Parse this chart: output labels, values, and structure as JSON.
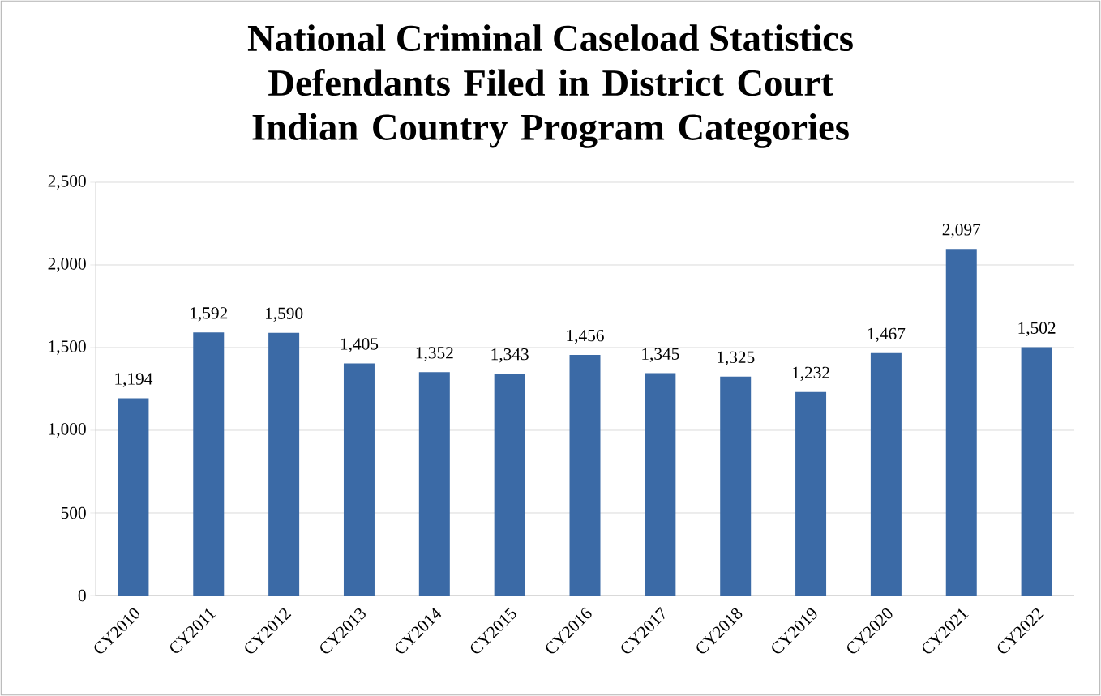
{
  "chart_data": {
    "type": "bar",
    "title": "National Criminal Caseload Statistics",
    "subtitle": "Defendants Filed in District Court Indian Country Program Categories",
    "categories": [
      "CY2010",
      "CY2011",
      "CY2012",
      "CY2013",
      "CY2014",
      "CY2015",
      "CY2016",
      "CY2017",
      "CY2018",
      "CY2019",
      "CY2020",
      "CY2021",
      "CY2022"
    ],
    "values": [
      1194,
      1592,
      1590,
      1405,
      1352,
      1343,
      1456,
      1345,
      1325,
      1232,
      1467,
      2097,
      1502
    ],
    "color": "#3b6aa6",
    "ylim": [
      0,
      2500
    ],
    "yticks": [
      0,
      {
        "value": 500,
        "label": "500"
      },
      {
        "value": 1000,
        "label": "1,000"
      },
      {
        "value": 1500,
        "label": "1,500"
      },
      {
        "value": 2000,
        "label": "2,000"
      },
      {
        "value": 2500,
        "label": "2,500"
      }
    ],
    "grid": "y",
    "value_labels": [
      "1,194",
      "1,592",
      "1,590",
      "1,405",
      "1,352",
      "1,343",
      "1,456",
      "1,345",
      "1,325",
      "1,232",
      "1,467",
      "2,097",
      "1,502"
    ]
  }
}
